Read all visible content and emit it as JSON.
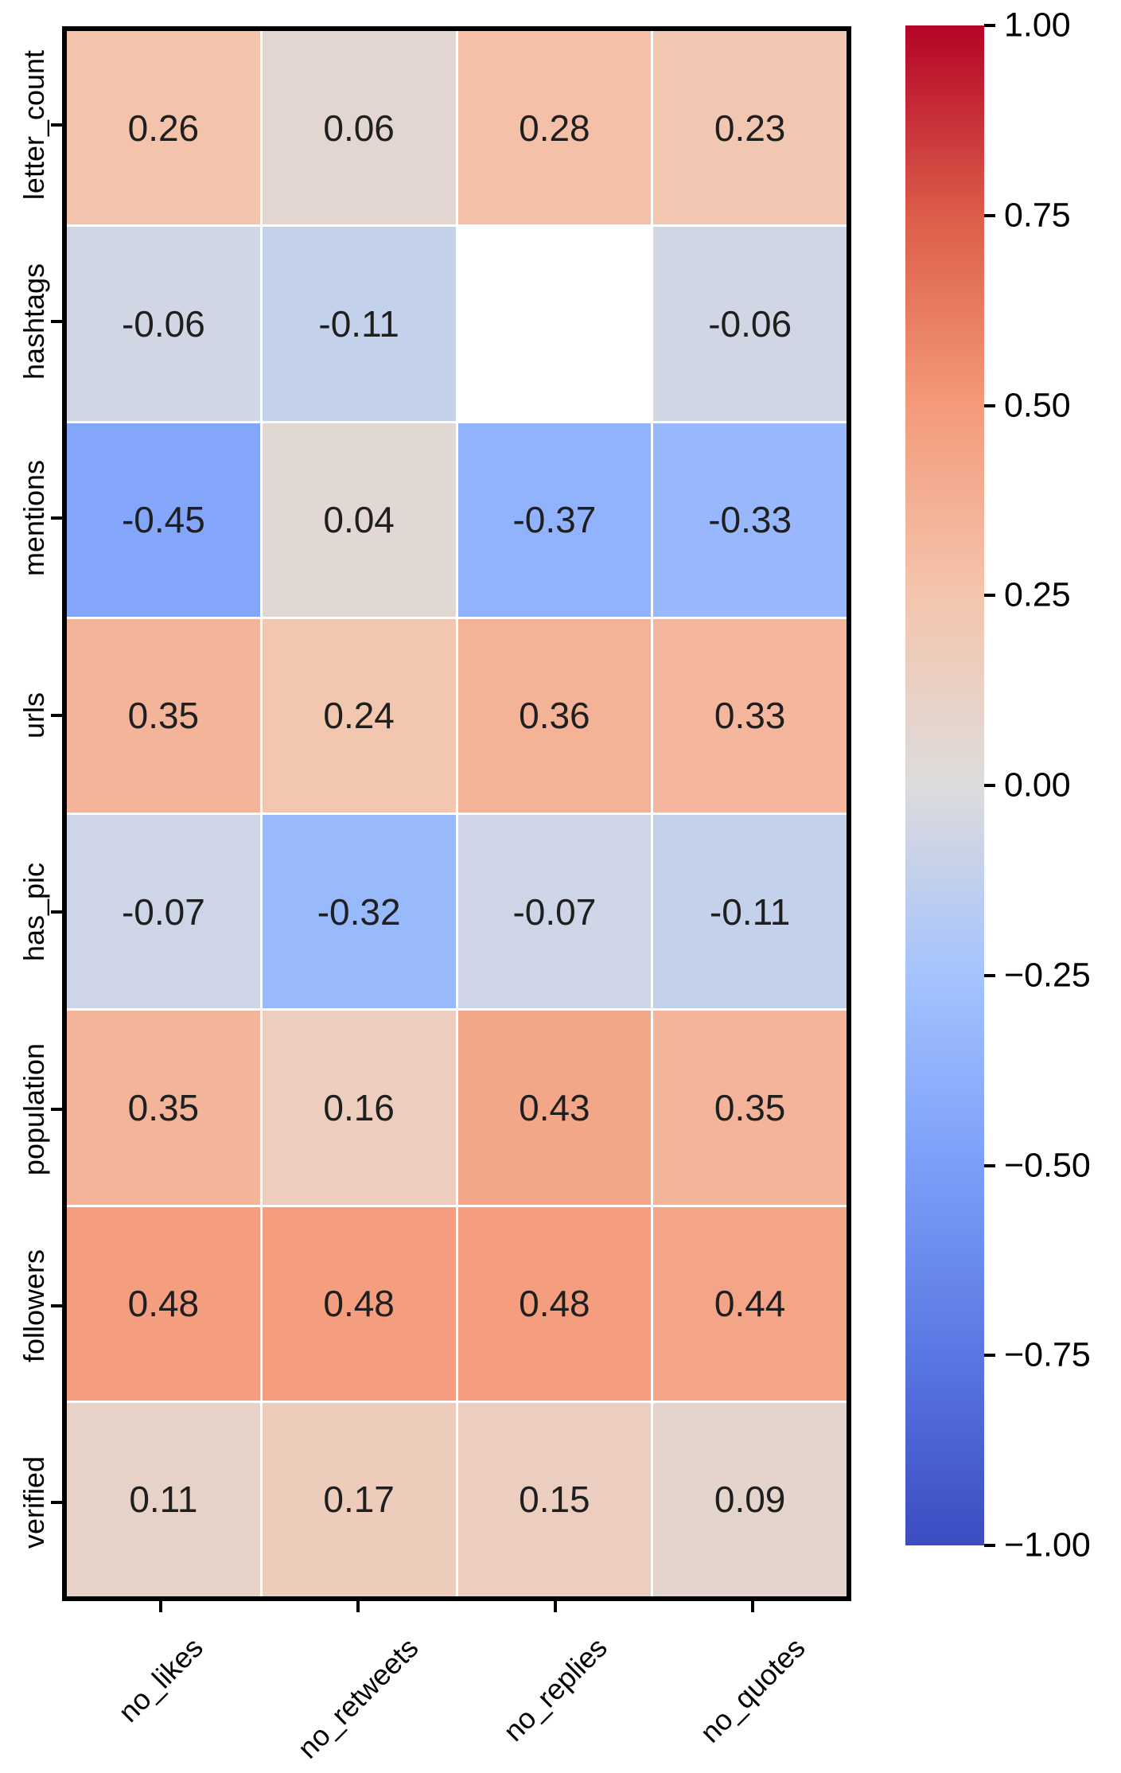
{
  "figure": {
    "background": "#ffffff"
  },
  "chart_data": {
    "type": "heatmap",
    "title": "",
    "y_tick_labels": [
      "letter_count",
      "hashtags",
      "mentions",
      "urls",
      "has_pic",
      "population",
      "followers",
      "verified"
    ],
    "x_tick_labels": [
      "no_likes",
      "no_retweets",
      "no_replies",
      "no_quotes"
    ],
    "values": [
      [
        0.26,
        0.06,
        0.28,
        0.23
      ],
      [
        -0.06,
        -0.11,
        null,
        -0.06
      ],
      [
        -0.45,
        0.04,
        -0.37,
        -0.33
      ],
      [
        0.35,
        0.24,
        0.36,
        0.33
      ],
      [
        -0.07,
        -0.32,
        -0.07,
        -0.11
      ],
      [
        0.35,
        0.16,
        0.43,
        0.35
      ],
      [
        0.48,
        0.48,
        0.48,
        0.44
      ],
      [
        0.11,
        0.17,
        0.15,
        0.09
      ]
    ],
    "missing_cells": [
      {
        "row": "hashtags",
        "column": "no_replies"
      }
    ],
    "missing_value_color": "#ffffff",
    "vmin": -1,
    "vmax": 1,
    "colormap": {
      "name": "coolwarm",
      "stops": [
        {
          "t": 0.0,
          "color": "#3b4cc0"
        },
        {
          "t": 0.125,
          "color": "#5977e3"
        },
        {
          "t": 0.25,
          "color": "#7b9ff9"
        },
        {
          "t": 0.375,
          "color": "#a5c3fe"
        },
        {
          "t": 0.5,
          "color": "#dddcdc"
        },
        {
          "t": 0.625,
          "color": "#f4c5ad"
        },
        {
          "t": 0.75,
          "color": "#f49a7b"
        },
        {
          "t": 0.875,
          "color": "#dc5d4a"
        },
        {
          "t": 1.0,
          "color": "#b40426"
        }
      ]
    },
    "colorbar": {
      "position": "right",
      "orientation": "vertical",
      "ticks": [
        "1.00",
        "0.75",
        "0.50",
        "0.25",
        "0.00",
        "−0.25",
        "−0.50",
        "−0.75",
        "−1.00"
      ]
    },
    "annotation_color": "#1f1f1f",
    "axis_label_color": "#000000",
    "border_color": "#000000",
    "gridline_color": "#ffffff",
    "grid_on": true
  }
}
